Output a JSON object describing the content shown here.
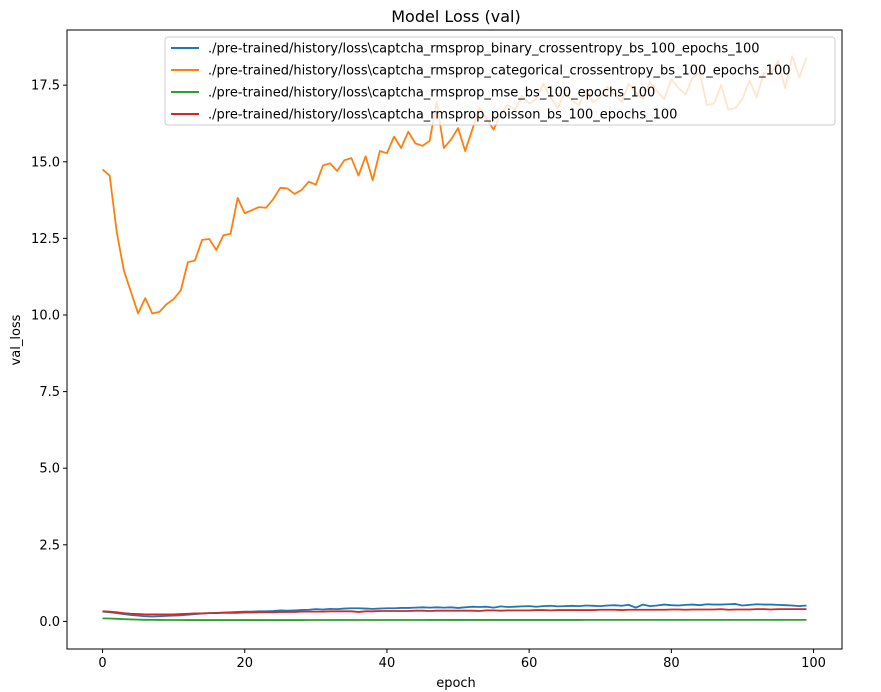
{
  "chart_data": {
    "type": "line",
    "title": "Model Loss (val)",
    "xlabel": "epoch",
    "ylabel": "val_loss",
    "xlim": [
      -5,
      104
    ],
    "ylim": [
      -0.9,
      19.3
    ],
    "xticks": [
      0,
      20,
      40,
      60,
      80,
      100
    ],
    "yticks": [
      0.0,
      2.5,
      5.0,
      7.5,
      10.0,
      12.5,
      15.0,
      17.5
    ],
    "ytick_labels": [
      "0.0",
      "2.5",
      "5.0",
      "7.5",
      "10.0",
      "12.5",
      "15.0",
      "17.5"
    ],
    "xtick_labels": [
      "0",
      "20",
      "40",
      "60",
      "80",
      "100"
    ],
    "grid": false,
    "legend_position": "top-right",
    "series": [
      {
        "name": "./pre-trained/history/loss\\captcha_rmsprop_binary_crossentropy_bs_100_epochs_100",
        "color": "#1f77b4",
        "values": [
          0.32,
          0.3,
          0.27,
          0.24,
          0.21,
          0.19,
          0.17,
          0.16,
          0.17,
          0.18,
          0.19,
          0.2,
          0.22,
          0.24,
          0.26,
          0.27,
          0.28,
          0.29,
          0.3,
          0.31,
          0.32,
          0.32,
          0.33,
          0.33,
          0.34,
          0.36,
          0.35,
          0.36,
          0.37,
          0.38,
          0.4,
          0.39,
          0.41,
          0.4,
          0.42,
          0.43,
          0.43,
          0.42,
          0.41,
          0.42,
          0.43,
          0.43,
          0.44,
          0.44,
          0.45,
          0.46,
          0.45,
          0.46,
          0.45,
          0.46,
          0.44,
          0.46,
          0.48,
          0.47,
          0.48,
          0.45,
          0.49,
          0.47,
          0.48,
          0.49,
          0.5,
          0.48,
          0.5,
          0.51,
          0.49,
          0.5,
          0.51,
          0.5,
          0.52,
          0.51,
          0.5,
          0.52,
          0.53,
          0.51,
          0.54,
          0.45,
          0.55,
          0.5,
          0.52,
          0.55,
          0.53,
          0.52,
          0.54,
          0.55,
          0.53,
          0.56,
          0.55,
          0.55,
          0.56,
          0.57,
          0.52,
          0.54,
          0.56,
          0.55,
          0.55,
          0.54,
          0.53,
          0.52,
          0.5,
          0.52
        ]
      },
      {
        "name": "./pre-trained/history/loss\\captcha_rmsprop_categorical_crossentropy_bs_100_epochs_100",
        "color": "#ff7f0e",
        "values": [
          14.75,
          14.55,
          12.7,
          11.45,
          10.75,
          10.05,
          10.55,
          10.05,
          10.1,
          10.35,
          10.52,
          10.8,
          11.72,
          11.78,
          12.45,
          12.48,
          12.12,
          12.6,
          12.65,
          13.82,
          13.32,
          13.42,
          13.52,
          13.5,
          13.78,
          14.15,
          14.13,
          13.95,
          14.08,
          14.35,
          14.25,
          14.88,
          14.95,
          14.7,
          15.05,
          15.12,
          14.55,
          15.18,
          14.4,
          15.35,
          15.28,
          15.82,
          15.45,
          15.98,
          15.6,
          15.52,
          15.68,
          16.95,
          15.45,
          15.72,
          16.1,
          15.35,
          16.05,
          16.75,
          16.4,
          16.05,
          16.55,
          16.85,
          16.7,
          17.15,
          16.9,
          17.05,
          17.55,
          17.1,
          16.75,
          17.25,
          17.0,
          16.85,
          17.35,
          16.95,
          17.1,
          17.45,
          17.2,
          16.95,
          17.55,
          17.25,
          17.05,
          17.6,
          17.3,
          17.05,
          17.7,
          17.4,
          17.2,
          17.75,
          17.9,
          16.85,
          16.9,
          17.5,
          16.7,
          16.75,
          17.05,
          17.65,
          17.1,
          17.9,
          17.85,
          18.3,
          17.4,
          18.45,
          17.75,
          18.4
        ]
      },
      {
        "name": "./pre-trained/history/loss\\captcha_rmsprop_mse_bs_100_epochs_100",
        "color": "#2ca02c",
        "values": [
          0.1,
          0.095,
          0.085,
          0.075,
          0.065,
          0.058,
          0.053,
          0.05,
          0.048,
          0.047,
          0.046,
          0.046,
          0.045,
          0.045,
          0.045,
          0.045,
          0.044,
          0.044,
          0.044,
          0.044,
          0.044,
          0.044,
          0.045,
          0.045,
          0.045,
          0.045,
          0.045,
          0.045,
          0.045,
          0.046,
          0.046,
          0.046,
          0.046,
          0.046,
          0.046,
          0.046,
          0.046,
          0.047,
          0.047,
          0.047,
          0.047,
          0.047,
          0.047,
          0.047,
          0.047,
          0.047,
          0.048,
          0.048,
          0.048,
          0.048,
          0.048,
          0.048,
          0.048,
          0.048,
          0.048,
          0.048,
          0.049,
          0.049,
          0.049,
          0.049,
          0.049,
          0.049,
          0.049,
          0.049,
          0.049,
          0.049,
          0.049,
          0.049,
          0.05,
          0.05,
          0.05,
          0.05,
          0.05,
          0.05,
          0.05,
          0.05,
          0.05,
          0.05,
          0.05,
          0.05,
          0.05,
          0.05,
          0.05,
          0.05,
          0.05,
          0.05,
          0.05,
          0.05,
          0.05,
          0.05,
          0.05,
          0.05,
          0.05,
          0.05,
          0.05,
          0.05,
          0.05,
          0.05,
          0.05,
          0.05
        ]
      },
      {
        "name": "./pre-trained/history/loss\\captcha_rmsprop_poisson_bs_100_epochs_100",
        "color": "#d62728",
        "values": [
          0.33,
          0.32,
          0.3,
          0.27,
          0.25,
          0.24,
          0.23,
          0.23,
          0.23,
          0.23,
          0.23,
          0.24,
          0.25,
          0.26,
          0.26,
          0.27,
          0.27,
          0.28,
          0.28,
          0.28,
          0.29,
          0.29,
          0.3,
          0.3,
          0.3,
          0.31,
          0.31,
          0.31,
          0.32,
          0.32,
          0.32,
          0.32,
          0.33,
          0.33,
          0.33,
          0.33,
          0.31,
          0.33,
          0.33,
          0.34,
          0.34,
          0.34,
          0.34,
          0.34,
          0.35,
          0.35,
          0.34,
          0.35,
          0.35,
          0.35,
          0.35,
          0.35,
          0.35,
          0.34,
          0.36,
          0.36,
          0.35,
          0.36,
          0.36,
          0.36,
          0.36,
          0.37,
          0.37,
          0.36,
          0.37,
          0.37,
          0.37,
          0.37,
          0.37,
          0.37,
          0.38,
          0.38,
          0.38,
          0.37,
          0.38,
          0.38,
          0.38,
          0.38,
          0.38,
          0.38,
          0.39,
          0.39,
          0.38,
          0.39,
          0.39,
          0.39,
          0.39,
          0.4,
          0.38,
          0.39,
          0.39,
          0.39,
          0.4,
          0.4,
          0.39,
          0.4,
          0.4,
          0.4,
          0.4,
          0.4
        ]
      }
    ]
  }
}
